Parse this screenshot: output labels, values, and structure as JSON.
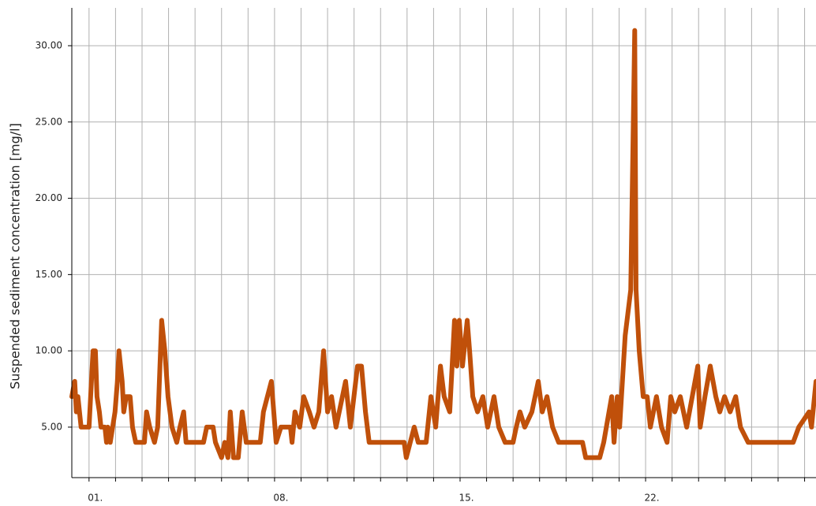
{
  "chart_data": {
    "type": "line",
    "ylabel": "Suspended sediment concentration [mg/l]",
    "xlim": [
      0.35,
      28.43
    ],
    "ylim": [
      1.69,
      32.48
    ],
    "xticks": [
      {
        "value": 1,
        "label": "01."
      },
      {
        "value": 8,
        "label": "08."
      },
      {
        "value": 15,
        "label": "15."
      },
      {
        "value": 22,
        "label": "22."
      }
    ],
    "xminorticks": [
      2,
      3,
      4,
      5,
      6,
      7,
      9,
      10,
      11,
      12,
      13,
      14,
      16,
      17,
      18,
      19,
      20,
      21,
      23,
      24,
      25,
      26,
      27,
      28
    ],
    "yticks": [
      {
        "value": 5,
        "label": "5.00"
      },
      {
        "value": 10,
        "label": "10.00"
      },
      {
        "value": 15,
        "label": "15.00"
      },
      {
        "value": 20,
        "label": "20.00"
      },
      {
        "value": 25,
        "label": "25.00"
      },
      {
        "value": 30,
        "label": "30.00"
      }
    ],
    "grid": true,
    "series": [
      {
        "color": "#c0500a",
        "x": [
          0.35,
          0.46,
          0.52,
          0.58,
          0.7,
          1.0,
          1.03,
          1.09,
          1.15,
          1.24,
          1.3,
          1.39,
          1.45,
          1.6,
          1.66,
          1.71,
          1.8,
          1.89,
          1.98,
          2.07,
          2.13,
          2.25,
          2.31,
          2.4,
          2.55,
          2.64,
          2.76,
          3.09,
          3.17,
          3.29,
          3.47,
          3.59,
          3.74,
          3.86,
          3.98,
          4.13,
          4.31,
          4.43,
          4.57,
          4.66,
          5.32,
          5.44,
          5.68,
          5.77,
          6.0,
          6.12,
          6.24,
          6.33,
          6.45,
          6.63,
          6.78,
          6.93,
          7.46,
          7.58,
          7.88,
          8.06,
          8.24,
          8.6,
          8.66,
          8.77,
          8.95,
          9.1,
          9.31,
          9.49,
          9.67,
          9.85,
          10.0,
          10.15,
          10.32,
          10.68,
          10.86,
          11.13,
          11.28,
          11.43,
          11.57,
          12.89,
          12.97,
          13.27,
          13.42,
          13.72,
          13.9,
          14.08,
          14.26,
          14.4,
          14.61,
          14.79,
          14.88,
          14.97,
          15.09,
          15.27,
          15.36,
          15.48,
          15.66,
          15.86,
          16.04,
          16.28,
          16.46,
          16.7,
          17.0,
          17.12,
          17.26,
          17.44,
          17.71,
          17.95,
          18.1,
          18.28,
          18.49,
          18.72,
          19.62,
          19.74,
          20.27,
          20.42,
          20.72,
          20.81,
          20.93,
          21.02,
          21.23,
          21.44,
          21.59,
          21.64,
          21.76,
          21.91,
          22.06,
          22.18,
          22.41,
          22.6,
          22.81,
          22.95,
          23.1,
          23.31,
          23.55,
          23.97,
          24.06,
          24.24,
          24.44,
          24.65,
          24.8,
          24.98,
          25.19,
          25.4,
          25.58,
          25.87,
          27.57,
          27.78,
          28.17,
          28.26,
          28.43
        ],
        "values": [
          7,
          8,
          6,
          7,
          5,
          5,
          6,
          8,
          10,
          10,
          7,
          6,
          5,
          5,
          4,
          5,
          4,
          5,
          6,
          8,
          10,
          8,
          6,
          7,
          7,
          5,
          4,
          4,
          6,
          5,
          4,
          5,
          12,
          10,
          7,
          5,
          4,
          5,
          6,
          4,
          4,
          5,
          5,
          4,
          3,
          4,
          3,
          6,
          3,
          3,
          6,
          4,
          4,
          6,
          8,
          4,
          5,
          5,
          4,
          6,
          5,
          7,
          6,
          5,
          6,
          10,
          6,
          7,
          5,
          8,
          5,
          9,
          9,
          6,
          4,
          4,
          3,
          5,
          4,
          4,
          7,
          5,
          9,
          7,
          6,
          12,
          9,
          12,
          9,
          12,
          10,
          7,
          6,
          7,
          5,
          7,
          5,
          4,
          4,
          5,
          6,
          5,
          6,
          8,
          6,
          7,
          5,
          4,
          4,
          3,
          3,
          4,
          7,
          4,
          7,
          5,
          11,
          14,
          31,
          14,
          10,
          7,
          7,
          5,
          7,
          5,
          4,
          7,
          6,
          7,
          5,
          9,
          5,
          7,
          9,
          7,
          6,
          7,
          6,
          7,
          5,
          4,
          4,
          5,
          6,
          5,
          8
        ]
      }
    ]
  }
}
